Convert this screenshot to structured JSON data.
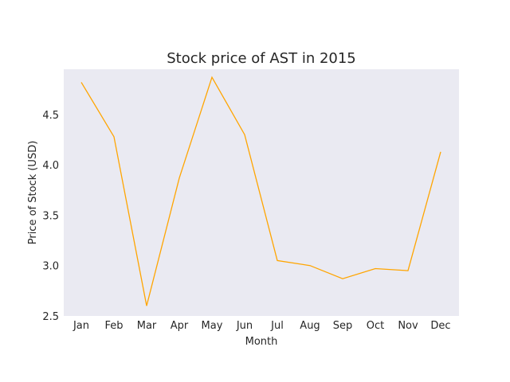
{
  "chart_data": {
    "type": "line",
    "title": "Stock price of AST in 2015",
    "xlabel": "Month",
    "ylabel": "Price of Stock (USD)",
    "categories": [
      "Jan",
      "Feb",
      "Mar",
      "Apr",
      "May",
      "Jun",
      "Jul",
      "Aug",
      "Sep",
      "Oct",
      "Nov",
      "Dec"
    ],
    "series": [
      {
        "values": [
          4.82,
          4.28,
          2.6,
          3.87,
          4.87,
          4.3,
          3.05,
          3.0,
          2.87,
          2.97,
          2.95,
          4.13
        ]
      }
    ],
    "ylim": [
      2.5,
      4.95
    ],
    "yticks": [
      2.5,
      3.0,
      3.5,
      4.0,
      4.5
    ],
    "ytick_labels": [
      "2.5",
      "3.0",
      "3.5",
      "4.0",
      "4.5"
    ],
    "grid": false,
    "legend": false,
    "colors": {
      "plot_background": "#eaeaf2",
      "line": "#ffa500",
      "text": "#262626"
    }
  }
}
